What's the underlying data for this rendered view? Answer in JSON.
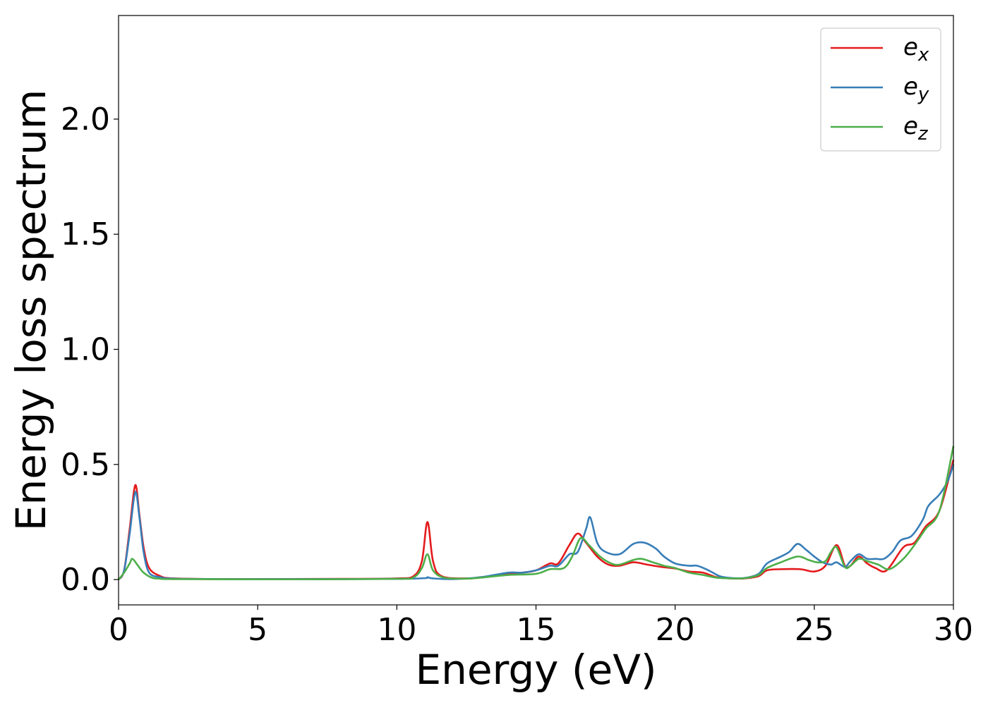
{
  "chart_data": {
    "type": "line",
    "title": "",
    "xlabel": "Energy (eV)",
    "ylabel": "Energy loss spectrum",
    "xlim": [
      0,
      30
    ],
    "ylim": [
      -0.11,
      2.45
    ],
    "xticks": [
      "0",
      "5",
      "10",
      "15",
      "20",
      "25",
      "30"
    ],
    "xtick_values": [
      0,
      5,
      10,
      15,
      20,
      25,
      30
    ],
    "yticks": [
      "0.0",
      "0.5",
      "1.0",
      "1.5",
      "2.0"
    ],
    "ytick_values": [
      0.0,
      0.5,
      1.0,
      1.5,
      2.0
    ],
    "grid": false,
    "legend_position": "top-right",
    "series": [
      {
        "name": "e_x",
        "label_base": "e",
        "label_sub": "x",
        "color": "#e41a1c",
        "points": [
          [
            0,
            0
          ],
          [
            0.2,
            0.04
          ],
          [
            0.4,
            0.22
          ],
          [
            0.6,
            0.41
          ],
          [
            0.75,
            0.28
          ],
          [
            0.9,
            0.14
          ],
          [
            1.1,
            0.05
          ],
          [
            1.5,
            0.015
          ],
          [
            2,
            0.005
          ],
          [
            4,
            0.002
          ],
          [
            8,
            0.003
          ],
          [
            10,
            0.005
          ],
          [
            10.6,
            0.015
          ],
          [
            10.9,
            0.08
          ],
          [
            11.1,
            0.25
          ],
          [
            11.3,
            0.08
          ],
          [
            11.6,
            0.015
          ],
          [
            12.5,
            0.005
          ],
          [
            13,
            0.01
          ],
          [
            14,
            0.025
          ],
          [
            14.5,
            0.03
          ],
          [
            15,
            0.04
          ],
          [
            15.5,
            0.07
          ],
          [
            15.8,
            0.07
          ],
          [
            16.2,
            0.15
          ],
          [
            16.5,
            0.2
          ],
          [
            16.8,
            0.16
          ],
          [
            17.2,
            0.1
          ],
          [
            17.6,
            0.065
          ],
          [
            18,
            0.06
          ],
          [
            18.5,
            0.075
          ],
          [
            19,
            0.065
          ],
          [
            19.5,
            0.055
          ],
          [
            20,
            0.048
          ],
          [
            20.5,
            0.035
          ],
          [
            21,
            0.03
          ],
          [
            21.5,
            0.01
          ],
          [
            22,
            0.005
          ],
          [
            22.5,
            0.005
          ],
          [
            23,
            0.015
          ],
          [
            23.3,
            0.04
          ],
          [
            23.8,
            0.045
          ],
          [
            24.5,
            0.045
          ],
          [
            25,
            0.035
          ],
          [
            25.4,
            0.06
          ],
          [
            25.8,
            0.15
          ],
          [
            26.1,
            0.06
          ],
          [
            26.3,
            0.06
          ],
          [
            26.6,
            0.1
          ],
          [
            26.9,
            0.07
          ],
          [
            27.2,
            0.05
          ],
          [
            27.6,
            0.04
          ],
          [
            28.2,
            0.14
          ],
          [
            28.6,
            0.16
          ],
          [
            29,
            0.23
          ],
          [
            29.5,
            0.3
          ],
          [
            30,
            0.52
          ]
        ]
      },
      {
        "name": "e_y",
        "label_base": "e",
        "label_sub": "y",
        "color": "#377eb8",
        "points": [
          [
            0,
            0
          ],
          [
            0.2,
            0.04
          ],
          [
            0.4,
            0.2
          ],
          [
            0.6,
            0.38
          ],
          [
            0.75,
            0.27
          ],
          [
            0.9,
            0.12
          ],
          [
            1.1,
            0.03
          ],
          [
            1.5,
            0.01
          ],
          [
            2,
            0.004
          ],
          [
            4,
            0.002
          ],
          [
            8,
            0.002
          ],
          [
            10,
            0.003
          ],
          [
            11,
            0.006
          ],
          [
            11.1,
            0.01
          ],
          [
            11.3,
            0.005
          ],
          [
            12,
            0.002
          ],
          [
            13,
            0.01
          ],
          [
            14,
            0.03
          ],
          [
            14.5,
            0.03
          ],
          [
            15,
            0.04
          ],
          [
            15.5,
            0.06
          ],
          [
            15.8,
            0.06
          ],
          [
            16.2,
            0.11
          ],
          [
            16.5,
            0.12
          ],
          [
            16.8,
            0.22
          ],
          [
            16.95,
            0.27
          ],
          [
            17.2,
            0.16
          ],
          [
            17.5,
            0.12
          ],
          [
            18,
            0.11
          ],
          [
            18.5,
            0.155
          ],
          [
            18.9,
            0.16
          ],
          [
            19.3,
            0.135
          ],
          [
            19.6,
            0.1
          ],
          [
            20,
            0.07
          ],
          [
            20.5,
            0.06
          ],
          [
            20.8,
            0.06
          ],
          [
            21.2,
            0.04
          ],
          [
            21.6,
            0.015
          ],
          [
            22,
            0.007
          ],
          [
            22.5,
            0.007
          ],
          [
            23,
            0.025
          ],
          [
            23.3,
            0.07
          ],
          [
            23.8,
            0.1
          ],
          [
            24.1,
            0.12
          ],
          [
            24.4,
            0.155
          ],
          [
            24.7,
            0.13
          ],
          [
            25,
            0.1
          ],
          [
            25.3,
            0.075
          ],
          [
            25.6,
            0.065
          ],
          [
            25.8,
            0.075
          ],
          [
            26.1,
            0.055
          ],
          [
            26.3,
            0.08
          ],
          [
            26.6,
            0.11
          ],
          [
            26.9,
            0.09
          ],
          [
            27.2,
            0.09
          ],
          [
            27.5,
            0.09
          ],
          [
            27.8,
            0.12
          ],
          [
            28.1,
            0.17
          ],
          [
            28.5,
            0.19
          ],
          [
            28.9,
            0.26
          ],
          [
            29.1,
            0.32
          ],
          [
            29.5,
            0.37
          ],
          [
            29.8,
            0.43
          ],
          [
            30,
            0.5
          ]
        ]
      },
      {
        "name": "e_z",
        "label_base": "e",
        "label_sub": "z",
        "color": "#4daf4a",
        "points": [
          [
            0,
            0
          ],
          [
            0.2,
            0.03
          ],
          [
            0.4,
            0.07
          ],
          [
            0.5,
            0.09
          ],
          [
            0.7,
            0.06
          ],
          [
            0.9,
            0.03
          ],
          [
            1.2,
            0.008
          ],
          [
            1.5,
            0.004
          ],
          [
            2,
            0.002
          ],
          [
            6,
            0.001
          ],
          [
            10,
            0.003
          ],
          [
            10.6,
            0.01
          ],
          [
            10.9,
            0.05
          ],
          [
            11.1,
            0.11
          ],
          [
            11.3,
            0.04
          ],
          [
            11.7,
            0.008
          ],
          [
            12.5,
            0.004
          ],
          [
            13,
            0.008
          ],
          [
            14,
            0.02
          ],
          [
            15,
            0.025
          ],
          [
            15.5,
            0.045
          ],
          [
            16,
            0.05
          ],
          [
            16.3,
            0.1
          ],
          [
            16.6,
            0.18
          ],
          [
            16.9,
            0.15
          ],
          [
            17.3,
            0.1
          ],
          [
            17.7,
            0.07
          ],
          [
            18,
            0.065
          ],
          [
            18.5,
            0.085
          ],
          [
            18.8,
            0.09
          ],
          [
            19.2,
            0.075
          ],
          [
            19.6,
            0.06
          ],
          [
            20,
            0.05
          ],
          [
            20.5,
            0.03
          ],
          [
            21,
            0.02
          ],
          [
            21.5,
            0.008
          ],
          [
            22,
            0.005
          ],
          [
            22.5,
            0.006
          ],
          [
            23,
            0.02
          ],
          [
            23.3,
            0.05
          ],
          [
            23.8,
            0.075
          ],
          [
            24.4,
            0.1
          ],
          [
            24.8,
            0.085
          ],
          [
            25.1,
            0.075
          ],
          [
            25.4,
            0.08
          ],
          [
            25.6,
            0.12
          ],
          [
            25.8,
            0.14
          ],
          [
            26.1,
            0.055
          ],
          [
            26.3,
            0.06
          ],
          [
            26.6,
            0.09
          ],
          [
            26.9,
            0.08
          ],
          [
            27.3,
            0.065
          ],
          [
            27.7,
            0.045
          ],
          [
            28.2,
            0.09
          ],
          [
            28.6,
            0.15
          ],
          [
            29,
            0.22
          ],
          [
            29.5,
            0.3
          ],
          [
            30,
            0.58
          ]
        ]
      }
    ]
  }
}
